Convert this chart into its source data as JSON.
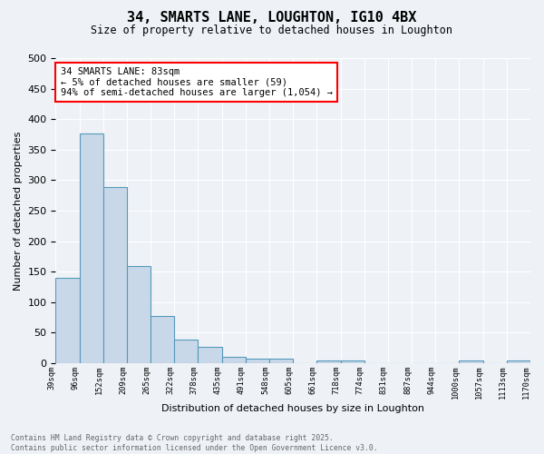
{
  "title": "34, SMARTS LANE, LOUGHTON, IG10 4BX",
  "subtitle": "Size of property relative to detached houses in Loughton",
  "xlabel": "Distribution of detached houses by size in Loughton",
  "ylabel": "Number of detached properties",
  "bar_color": "#c8d8e8",
  "bar_edge_color": "#5599bb",
  "background_color": "#eef2f7",
  "grid_color": "#ffffff",
  "annotation_line1": "34 SMARTS LANE: 83sqm",
  "annotation_line2": "← 5% of detached houses are smaller (59)",
  "annotation_line3": "94% of semi-detached houses are larger (1,054) →",
  "footer_line1": "Contains HM Land Registry data © Crown copyright and database right 2025.",
  "footer_line2": "Contains public sector information licensed under the Open Government Licence v3.0.",
  "bins": [
    "39sqm",
    "96sqm",
    "152sqm",
    "209sqm",
    "265sqm",
    "322sqm",
    "378sqm",
    "435sqm",
    "491sqm",
    "548sqm",
    "605sqm",
    "661sqm",
    "718sqm",
    "774sqm",
    "831sqm",
    "887sqm",
    "944sqm",
    "1000sqm",
    "1057sqm",
    "1113sqm",
    "1170sqm"
  ],
  "values": [
    140,
    377,
    288,
    159,
    77,
    38,
    26,
    10,
    7,
    7,
    0,
    4,
    5,
    0,
    0,
    0,
    0,
    4,
    0,
    4
  ],
  "ylim": [
    0,
    500
  ],
  "yticks": [
    0,
    50,
    100,
    150,
    200,
    250,
    300,
    350,
    400,
    450,
    500
  ]
}
